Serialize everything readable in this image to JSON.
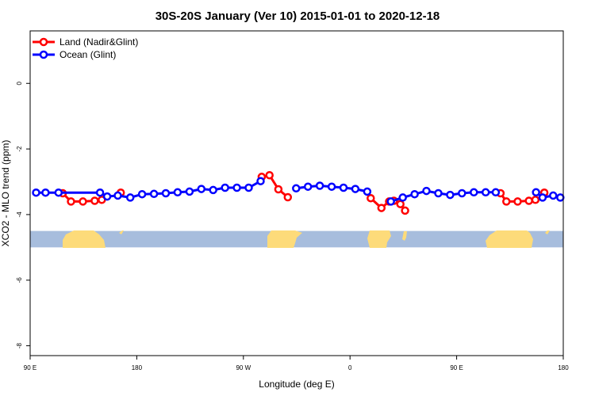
{
  "chart_data": {
    "type": "line",
    "title": "30S-20S January (Ver 10)   2015-01-01 to 2020-12-18",
    "xlabel": "Longitude (deg E)",
    "ylabel": "XCO2 - MLO trend (ppm)",
    "xlim": [
      90,
      540
    ],
    "ylim": [
      -8.3,
      1.6
    ],
    "xticks": [
      90,
      180,
      270,
      360,
      450,
      540
    ],
    "xtick_labels": [
      "90 E",
      "180",
      "90 W",
      "0",
      "90 E",
      "180"
    ],
    "yticks": [
      0,
      -2,
      -4,
      -6,
      -8
    ],
    "ytick_labels": [
      "0",
      "-2",
      "-4",
      "-6",
      "-8"
    ],
    "legend": {
      "position": "top-left"
    },
    "grid": false,
    "colors": {
      "land": "#ff0000",
      "ocean": "#0000ff",
      "map_ocean": "#a7bddd",
      "map_land": "#fddb7a"
    },
    "landmask_band": {
      "y_top": -4.5,
      "y_bottom": -5.0
    },
    "series": [
      {
        "name": "Land (Nadir&Glint)",
        "color": "#ff0000",
        "segments": [
          [
            [
              117.5,
              -3.35
            ],
            [
              124.5,
              -3.6
            ],
            [
              134.5,
              -3.6
            ],
            [
              144.5,
              -3.58
            ],
            [
              150.5,
              -3.55
            ]
          ],
          [
            [
              166.5,
              -3.33
            ]
          ],
          [
            [
              285.5,
              -2.85
            ],
            [
              292,
              -2.8
            ],
            [
              299.5,
              -3.23
            ],
            [
              307.5,
              -3.47
            ]
          ],
          [
            [
              377.5,
              -3.5
            ],
            [
              386.5,
              -3.8
            ],
            [
              393,
              -3.6
            ],
            [
              397,
              -3.58
            ],
            [
              402.5,
              -3.68
            ],
            [
              406.5,
              -3.88
            ]
          ],
          [
            [
              487,
              -3.35
            ],
            [
              492,
              -3.6
            ],
            [
              501.5,
              -3.6
            ],
            [
              511,
              -3.58
            ],
            [
              516.5,
              -3.55
            ]
          ],
          [
            [
              524,
              -3.33
            ]
          ]
        ]
      },
      {
        "name": "Ocean (Glint)",
        "color": "#0000ff",
        "segments": [
          [
            [
              95,
              -3.33
            ],
            [
              103,
              -3.33
            ],
            [
              114,
              -3.33
            ],
            [
              149,
              -3.33
            ],
            [
              155,
              -3.45
            ],
            [
              164,
              -3.42
            ],
            [
              174.5,
              -3.48
            ],
            [
              184.5,
              -3.38
            ],
            [
              194.5,
              -3.37
            ],
            [
              204.5,
              -3.35
            ],
            [
              214.5,
              -3.32
            ],
            [
              224.5,
              -3.3
            ],
            [
              234.5,
              -3.22
            ],
            [
              244.5,
              -3.25
            ],
            [
              254.5,
              -3.18
            ],
            [
              264.5,
              -3.18
            ],
            [
              274.5,
              -3.18
            ],
            [
              284.5,
              -2.98
            ]
          ],
          [
            [
              314.5,
              -3.2
            ],
            [
              324.5,
              -3.15
            ],
            [
              334.5,
              -3.12
            ],
            [
              344.5,
              -3.15
            ],
            [
              354.5,
              -3.18
            ],
            [
              364.5,
              -3.22
            ],
            [
              374.5,
              -3.3
            ]
          ],
          [
            [
              394.5,
              -3.6
            ],
            [
              404.5,
              -3.48
            ],
            [
              414.5,
              -3.38
            ],
            [
              424.5,
              -3.28
            ],
            [
              434.5,
              -3.35
            ],
            [
              444.5,
              -3.4
            ],
            [
              454.5,
              -3.35
            ],
            [
              464.5,
              -3.32
            ],
            [
              474.5,
              -3.32
            ],
            [
              483,
              -3.32
            ]
          ],
          [
            [
              517,
              -3.32
            ],
            [
              522.5,
              -3.48
            ],
            [
              531.5,
              -3.42
            ],
            [
              537.5,
              -3.48
            ]
          ]
        ]
      }
    ]
  }
}
